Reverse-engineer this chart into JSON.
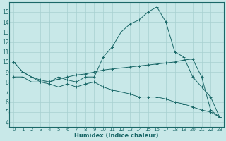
{
  "xlabel": "Humidex (Indice chaleur)",
  "bg_color": "#c8e8e8",
  "grid_color": "#a8d0d0",
  "line_color": "#1a6868",
  "xlim": [
    -0.5,
    23.5
  ],
  "ylim": [
    3.5,
    16.0
  ],
  "xticks": [
    0,
    1,
    2,
    3,
    4,
    5,
    6,
    7,
    8,
    9,
    10,
    11,
    12,
    13,
    14,
    15,
    16,
    17,
    18,
    19,
    20,
    21,
    22,
    23
  ],
  "yticks": [
    4,
    5,
    6,
    7,
    8,
    9,
    10,
    11,
    12,
    13,
    14,
    15
  ],
  "curve1_x": [
    0,
    1,
    2,
    3,
    4,
    5,
    6,
    7,
    8,
    9,
    10,
    11,
    12,
    13,
    14,
    15,
    16,
    17,
    18,
    19,
    20,
    21,
    22,
    23
  ],
  "curve1_y": [
    10.0,
    9.0,
    8.5,
    8.0,
    8.0,
    8.5,
    8.2,
    8.0,
    8.5,
    8.5,
    10.5,
    11.5,
    13.0,
    13.8,
    14.2,
    15.0,
    15.5,
    14.0,
    11.0,
    10.5,
    8.5,
    7.5,
    6.5,
    4.5
  ],
  "curve2_x": [
    0,
    1,
    2,
    3,
    4,
    5,
    6,
    7,
    8,
    9,
    10,
    11,
    12,
    13,
    14,
    15,
    16,
    17,
    18,
    19,
    20,
    21,
    22,
    23
  ],
  "curve2_y": [
    10.0,
    9.0,
    8.5,
    8.2,
    8.0,
    8.3,
    8.5,
    8.7,
    8.8,
    9.0,
    9.2,
    9.3,
    9.4,
    9.5,
    9.6,
    9.7,
    9.8,
    9.9,
    10.0,
    10.2,
    10.3,
    8.5,
    5.2,
    4.5
  ],
  "curve3_x": [
    0,
    1,
    2,
    3,
    4,
    5,
    6,
    7,
    8,
    9,
    10,
    11,
    12,
    13,
    14,
    15,
    16,
    17,
    18,
    19,
    20,
    21,
    22,
    23
  ],
  "curve3_y": [
    8.5,
    8.5,
    8.0,
    8.0,
    7.8,
    7.5,
    7.8,
    7.5,
    7.8,
    8.0,
    7.5,
    7.2,
    7.0,
    6.8,
    6.5,
    6.5,
    6.5,
    6.3,
    6.0,
    5.8,
    5.5,
    5.2,
    5.0,
    4.5
  ],
  "xlabel_fontsize": 6,
  "tick_fontsize": 5,
  "ytick_fontsize": 5.5
}
